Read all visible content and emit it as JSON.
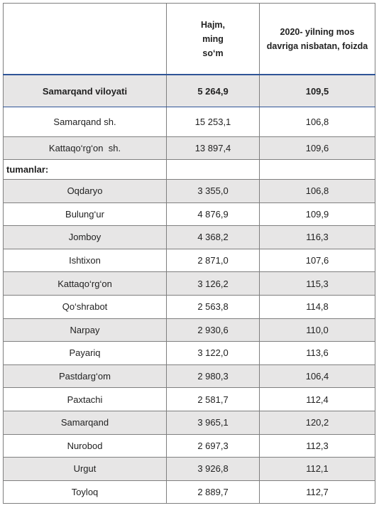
{
  "table": {
    "header": [
      [
        "Hajm,",
        "ming",
        "so‘m"
      ],
      [
        "2020- yilning mos",
        "davriga nisbatan, foizda"
      ]
    ],
    "rows": [
      [
        "Samarqand viloyati",
        "5 264,9",
        "109,5"
      ],
      [
        "Samarqand sh.",
        "15 253,1",
        "106,8"
      ],
      [
        "Kattaqo‘rg‘on  sh.",
        "13 897,4",
        "109,6"
      ],
      [
        "tumanlar:"
      ],
      [
        "Oqdaryo",
        "3 355,0",
        "106,8"
      ],
      [
        "Bulung‘ur",
        "4 876,9",
        "109,9"
      ],
      [
        "Jomboy",
        "4 368,2",
        "116,3"
      ],
      [
        "Ishtixon",
        "2 871,0",
        "107,6"
      ],
      [
        "Kattaqo‘rg‘on",
        "3 126,2",
        "115,3"
      ],
      [
        "Qo‘shrabot",
        "2 563,8",
        "114,8"
      ],
      [
        "Narpay",
        "2 930,6",
        "110,0"
      ],
      [
        "Payariq",
        "3 122,0",
        "113,6"
      ],
      [
        "Pastdarg‘om",
        "2 980,3",
        "106,4"
      ],
      [
        "Paxtachi",
        "2 581,7",
        "112,4"
      ],
      [
        "Samarqand",
        "3 965,1",
        "120,2"
      ],
      [
        "Nurobod",
        "2 697,3",
        "112,3"
      ],
      [
        "Urgut",
        "3 926,8",
        "112,1"
      ],
      [
        "Toyloq",
        "2 889,7",
        "112,7"
      ]
    ]
  }
}
